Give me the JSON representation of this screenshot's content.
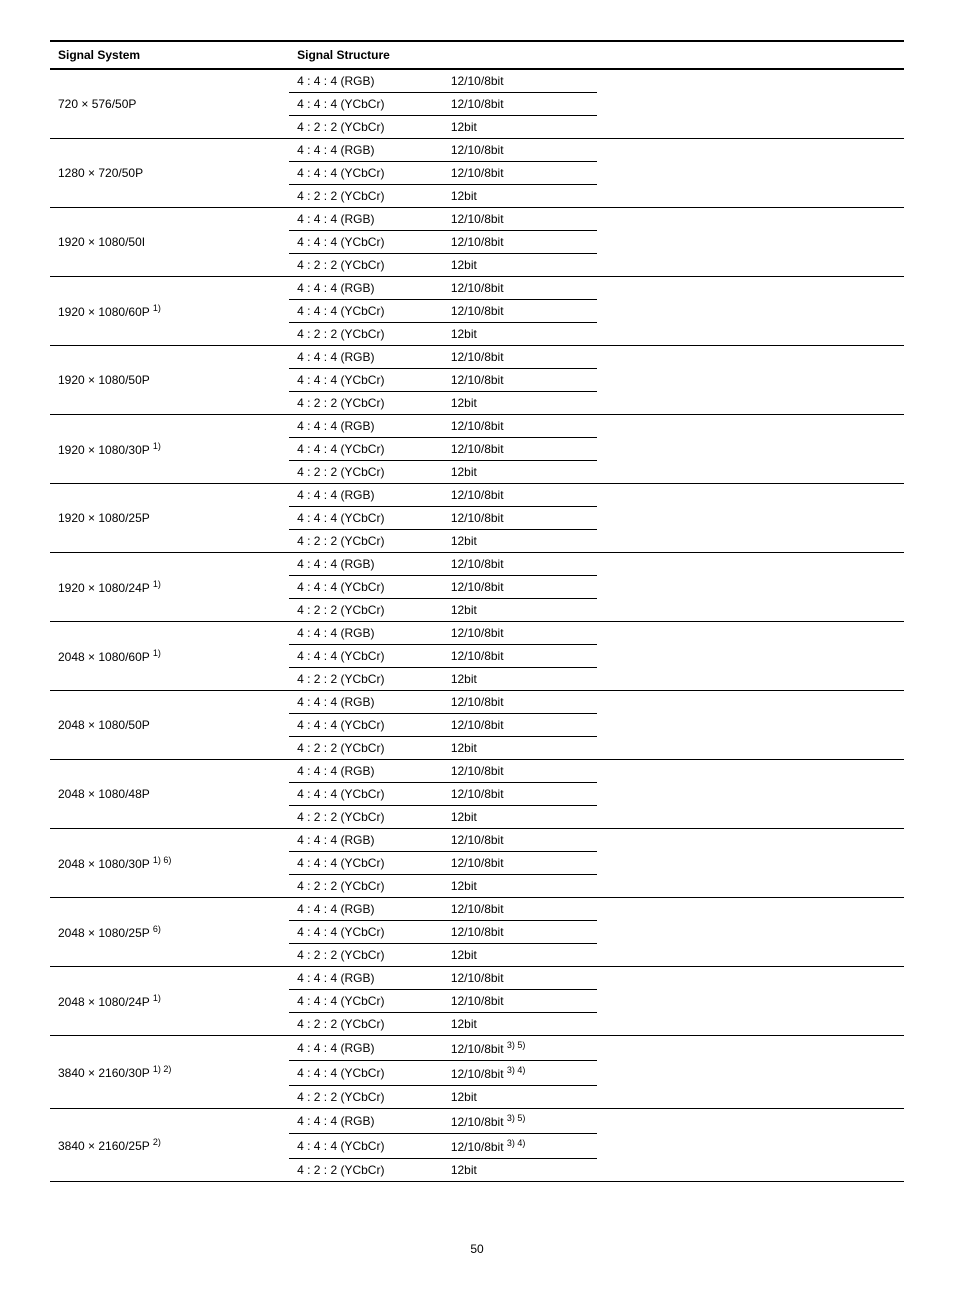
{
  "headers": {
    "signal_system": "Signal System",
    "signal_structure": "Signal Structure"
  },
  "groups": [
    {
      "system": "720 × 576/50P",
      "sup": "",
      "rows": [
        {
          "struct": "4 : 4 : 4 (RGB)",
          "bits": "12/10/8bit"
        },
        {
          "struct": "4 : 4 : 4 (YCbCr)",
          "bits": "12/10/8bit"
        },
        {
          "struct": "4 : 2 : 2 (YCbCr)",
          "bits": "12bit"
        }
      ]
    },
    {
      "system": "1280 × 720/50P",
      "sup": "",
      "rows": [
        {
          "struct": "4 : 4 : 4 (RGB)",
          "bits": "12/10/8bit"
        },
        {
          "struct": "4 : 4 : 4 (YCbCr)",
          "bits": "12/10/8bit"
        },
        {
          "struct": "4 : 2 : 2 (YCbCr)",
          "bits": "12bit"
        }
      ]
    },
    {
      "system": "1920 × 1080/50I",
      "sup": "",
      "rows": [
        {
          "struct": "4 : 4 : 4 (RGB)",
          "bits": "12/10/8bit"
        },
        {
          "struct": "4 : 4 : 4 (YCbCr)",
          "bits": "12/10/8bit"
        },
        {
          "struct": "4 : 2 : 2 (YCbCr)",
          "bits": "12bit"
        }
      ]
    },
    {
      "system": "1920 × 1080/60P ",
      "sup": "1)",
      "rows": [
        {
          "struct": "4 : 4 : 4 (RGB)",
          "bits": "12/10/8bit"
        },
        {
          "struct": "4 : 4 : 4 (YCbCr)",
          "bits": "12/10/8bit"
        },
        {
          "struct": "4 : 2 : 2 (YCbCr)",
          "bits": "12bit"
        }
      ]
    },
    {
      "system": "1920 × 1080/50P",
      "sup": "",
      "rows": [
        {
          "struct": "4 : 4 : 4 (RGB)",
          "bits": "12/10/8bit"
        },
        {
          "struct": "4 : 4 : 4 (YCbCr)",
          "bits": "12/10/8bit"
        },
        {
          "struct": "4 : 2 : 2 (YCbCr)",
          "bits": "12bit"
        }
      ]
    },
    {
      "system": "1920 × 1080/30P ",
      "sup": "1)",
      "rows": [
        {
          "struct": "4 : 4 : 4 (RGB)",
          "bits": "12/10/8bit"
        },
        {
          "struct": "4 : 4 : 4 (YCbCr)",
          "bits": "12/10/8bit"
        },
        {
          "struct": "4 : 2 : 2 (YCbCr)",
          "bits": "12bit"
        }
      ]
    },
    {
      "system": "1920 × 1080/25P",
      "sup": "",
      "rows": [
        {
          "struct": "4 : 4 : 4 (RGB)",
          "bits": "12/10/8bit"
        },
        {
          "struct": "4 : 4 : 4 (YCbCr)",
          "bits": "12/10/8bit"
        },
        {
          "struct": "4 : 2 : 2 (YCbCr)",
          "bits": "12bit"
        }
      ]
    },
    {
      "system": "1920 × 1080/24P ",
      "sup": "1)",
      "rows": [
        {
          "struct": "4 : 4 : 4 (RGB)",
          "bits": "12/10/8bit"
        },
        {
          "struct": "4 : 4 : 4 (YCbCr)",
          "bits": "12/10/8bit"
        },
        {
          "struct": "4 : 2 : 2 (YCbCr)",
          "bits": "12bit"
        }
      ]
    },
    {
      "system": "2048 × 1080/60P ",
      "sup": "1)",
      "rows": [
        {
          "struct": "4 : 4 : 4 (RGB)",
          "bits": "12/10/8bit"
        },
        {
          "struct": "4 : 4 : 4 (YCbCr)",
          "bits": "12/10/8bit"
        },
        {
          "struct": "4 : 2 : 2 (YCbCr)",
          "bits": "12bit"
        }
      ]
    },
    {
      "system": "2048 × 1080/50P",
      "sup": "",
      "rows": [
        {
          "struct": "4 : 4 : 4 (RGB)",
          "bits": "12/10/8bit"
        },
        {
          "struct": "4 : 4 : 4 (YCbCr)",
          "bits": "12/10/8bit"
        },
        {
          "struct": "4 : 2 : 2 (YCbCr)",
          "bits": "12bit"
        }
      ]
    },
    {
      "system": "2048 × 1080/48P",
      "sup": "",
      "rows": [
        {
          "struct": "4 : 4 : 4 (RGB)",
          "bits": "12/10/8bit"
        },
        {
          "struct": "4 : 4 : 4 (YCbCr)",
          "bits": "12/10/8bit"
        },
        {
          "struct": "4 : 2 : 2 (YCbCr)",
          "bits": "12bit"
        }
      ]
    },
    {
      "system": "2048 × 1080/30P ",
      "sup": "1) 6)",
      "rows": [
        {
          "struct": "4 : 4 : 4 (RGB)",
          "bits": "12/10/8bit"
        },
        {
          "struct": "4 : 4 : 4 (YCbCr)",
          "bits": "12/10/8bit"
        },
        {
          "struct": "4 : 2 : 2 (YCbCr)",
          "bits": "12bit"
        }
      ]
    },
    {
      "system": "2048 × 1080/25P ",
      "sup": "6)",
      "rows": [
        {
          "struct": "4 : 4 : 4 (RGB)",
          "bits": "12/10/8bit"
        },
        {
          "struct": "4 : 4 : 4 (YCbCr)",
          "bits": "12/10/8bit"
        },
        {
          "struct": "4 : 2 : 2 (YCbCr)",
          "bits": "12bit"
        }
      ]
    },
    {
      "system": "2048 × 1080/24P ",
      "sup": "1)",
      "rows": [
        {
          "struct": "4 : 4 : 4 (RGB)",
          "bits": "12/10/8bit"
        },
        {
          "struct": "4 : 4 : 4 (YCbCr)",
          "bits": "12/10/8bit"
        },
        {
          "struct": "4 : 2 : 2 (YCbCr)",
          "bits": "12bit"
        }
      ]
    },
    {
      "system": "3840 × 2160/30P ",
      "sup": "1) 2)",
      "rows": [
        {
          "struct": "4 : 4 : 4 (RGB)",
          "bits": "12/10/8bit ",
          "bsup": "3) 5)"
        },
        {
          "struct": "4 : 4 : 4 (YCbCr)",
          "bits": "12/10/8bit ",
          "bsup": "3) 4)"
        },
        {
          "struct": "4 : 2 : 2 (YCbCr)",
          "bits": "12bit"
        }
      ]
    },
    {
      "system": "3840 × 2160/25P ",
      "sup": "2)",
      "rows": [
        {
          "struct": "4 : 4 : 4 (RGB)",
          "bits": "12/10/8bit ",
          "bsup": "3) 5)"
        },
        {
          "struct": "4 : 4 : 4 (YCbCr)",
          "bits": "12/10/8bit ",
          "bsup": "3) 4)"
        },
        {
          "struct": "4 : 2 : 2 (YCbCr)",
          "bits": "12bit"
        }
      ]
    }
  ],
  "page_number": "50"
}
